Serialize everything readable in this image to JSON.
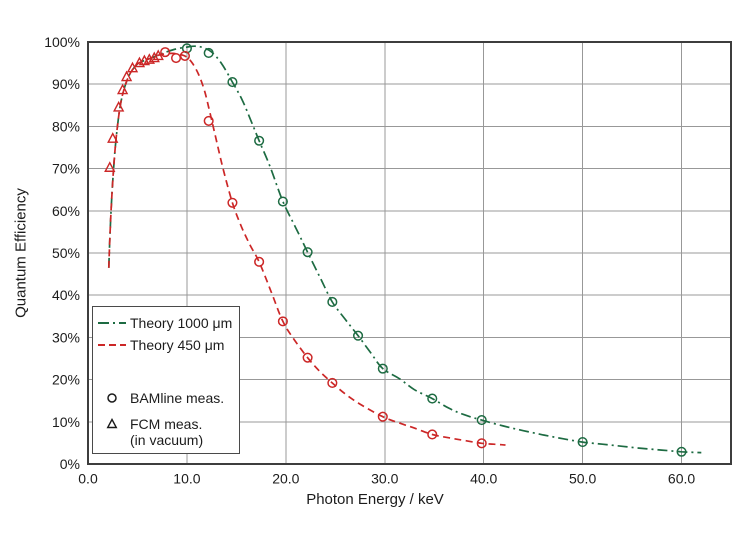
{
  "figure": {
    "background": "#ffffff"
  },
  "colors": {
    "green": "#1d6b42",
    "red": "#cc2727",
    "grid": "#989898",
    "border": "#3d3d3d",
    "black": "#1a1a1a"
  },
  "legend": {
    "items": [
      {
        "type": "line",
        "style": "dashdot",
        "label": "Theory 1000 μm"
      },
      {
        "type": "line",
        "style": "dashed",
        "label": "Theory 450 μm"
      },
      {
        "type": "marker",
        "marker": "circle",
        "label": "BAMline meas."
      },
      {
        "type": "marker",
        "marker": "triangle",
        "label": "FCM meas.",
        "sublabel": "(in vacuum)"
      }
    ]
  },
  "chart_data": {
    "type": "line",
    "title": "",
    "xlabel": "Photon Energy / keV",
    "ylabel": "Quantum Efficiency",
    "xlim": [
      0,
      65
    ],
    "ylim": [
      0,
      100
    ],
    "grid": true,
    "legend_position": "lower-left",
    "x_ticks": [
      {
        "v": 0,
        "label": "0.0"
      },
      {
        "v": 10,
        "label": "10.0"
      },
      {
        "v": 20,
        "label": "20.0"
      },
      {
        "v": 30,
        "label": "30.0"
      },
      {
        "v": 40,
        "label": "40.0"
      },
      {
        "v": 50,
        "label": "50.0"
      },
      {
        "v": 60,
        "label": "60.0"
      }
    ],
    "y_ticks": [
      {
        "v": 0,
        "label": "0%"
      },
      {
        "v": 10,
        "label": "10%"
      },
      {
        "v": 20,
        "label": "20%"
      },
      {
        "v": 30,
        "label": "30%"
      },
      {
        "v": 40,
        "label": "40%"
      },
      {
        "v": 50,
        "label": "50%"
      },
      {
        "v": 60,
        "label": "60%"
      },
      {
        "v": 70,
        "label": "70%"
      },
      {
        "v": 80,
        "label": "80%"
      },
      {
        "v": 90,
        "label": "90%"
      },
      {
        "v": 100,
        "label": "100%"
      }
    ],
    "series": [
      {
        "name": "Theory 1000 μm",
        "kind": "curve",
        "dash": "dashdot",
        "color_key": "green",
        "points": [
          [
            2.1,
            46.5
          ],
          [
            2.25,
            56
          ],
          [
            2.45,
            65
          ],
          [
            2.7,
            73.5
          ],
          [
            3.0,
            80.5
          ],
          [
            3.35,
            86
          ],
          [
            3.8,
            90
          ],
          [
            4.3,
            92.7
          ],
          [
            5.0,
            94.8
          ],
          [
            5.7,
            95.6
          ],
          [
            6.4,
            96.2
          ],
          [
            7.0,
            96.8
          ],
          [
            8.0,
            97.7
          ],
          [
            9.0,
            98.4
          ],
          [
            10.0,
            98.8
          ],
          [
            10.8,
            99.0
          ],
          [
            11.6,
            98.7
          ],
          [
            12.5,
            97.6
          ],
          [
            13.5,
            94.9
          ],
          [
            14.6,
            90.5
          ],
          [
            15.6,
            86.2
          ],
          [
            16.5,
            81.2
          ],
          [
            17.3,
            76.6
          ],
          [
            18.4,
            70.5
          ],
          [
            19.7,
            62.2
          ],
          [
            21.0,
            56.0
          ],
          [
            22.2,
            50.2
          ],
          [
            23.5,
            44.0
          ],
          [
            24.7,
            38.4
          ],
          [
            26.0,
            34.3
          ],
          [
            27.3,
            30.4
          ],
          [
            28.6,
            26.3
          ],
          [
            29.8,
            22.6
          ],
          [
            31.5,
            20.2
          ],
          [
            33.0,
            17.6
          ],
          [
            34.8,
            15.5
          ],
          [
            36.5,
            13.2
          ],
          [
            38.0,
            11.7
          ],
          [
            39.8,
            10.4
          ],
          [
            42.0,
            9.0
          ],
          [
            44.0,
            7.9
          ],
          [
            46.0,
            6.9
          ],
          [
            48.0,
            6.0
          ],
          [
            50.0,
            5.2
          ],
          [
            52.0,
            4.7
          ],
          [
            54.0,
            4.2
          ],
          [
            56.0,
            3.7
          ],
          [
            58.0,
            3.3
          ],
          [
            60.0,
            2.9
          ],
          [
            62.0,
            2.7
          ]
        ]
      },
      {
        "name": "Theory 450 μm",
        "kind": "curve",
        "dash": "dashed",
        "color_key": "red",
        "points": [
          [
            2.1,
            46.5
          ],
          [
            2.25,
            56
          ],
          [
            2.45,
            65
          ],
          [
            2.7,
            73.5
          ],
          [
            3.0,
            80.5
          ],
          [
            3.35,
            86
          ],
          [
            3.8,
            90
          ],
          [
            4.3,
            92.7
          ],
          [
            5.0,
            94.8
          ],
          [
            5.7,
            95.6
          ],
          [
            6.4,
            96.2
          ],
          [
            7.0,
            96.8
          ],
          [
            7.8,
            97.2
          ],
          [
            8.6,
            97.3
          ],
          [
            9.4,
            97.0
          ],
          [
            10.0,
            96.4
          ],
          [
            10.6,
            94.8
          ],
          [
            11.2,
            92.2
          ],
          [
            11.8,
            88.3
          ],
          [
            12.3,
            83.5
          ],
          [
            12.8,
            78.5
          ],
          [
            13.6,
            70.5
          ],
          [
            14.6,
            61.9
          ],
          [
            15.5,
            56.3
          ],
          [
            16.4,
            51.8
          ],
          [
            17.3,
            47.9
          ],
          [
            18.5,
            40.9
          ],
          [
            19.7,
            33.8
          ],
          [
            20.9,
            29.3
          ],
          [
            22.2,
            25.2
          ],
          [
            23.4,
            22.0
          ],
          [
            24.7,
            19.2
          ],
          [
            26.0,
            16.6
          ],
          [
            27.5,
            14.2
          ],
          [
            29.8,
            11.2
          ],
          [
            31.5,
            9.7
          ],
          [
            33.0,
            8.5
          ],
          [
            34.8,
            7.0
          ],
          [
            36.5,
            6.2
          ],
          [
            38.0,
            5.6
          ],
          [
            39.8,
            4.9
          ],
          [
            41.0,
            4.7
          ],
          [
            42.2,
            4.5
          ]
        ]
      },
      {
        "name": "BAMline meas. (1000 μm)",
        "kind": "markers",
        "marker": "circle",
        "color_key": "green",
        "points": [
          [
            10.0,
            98.5
          ],
          [
            12.2,
            97.4
          ],
          [
            14.6,
            90.5
          ],
          [
            17.3,
            76.6
          ],
          [
            19.7,
            62.2
          ],
          [
            22.2,
            50.2
          ],
          [
            24.7,
            38.4
          ],
          [
            27.3,
            30.4
          ],
          [
            29.8,
            22.6
          ],
          [
            34.8,
            15.5
          ],
          [
            39.8,
            10.4
          ],
          [
            50.0,
            5.2
          ],
          [
            60.0,
            2.9
          ]
        ]
      },
      {
        "name": "BAMline meas. (450 μm)",
        "kind": "markers",
        "marker": "circle",
        "color_key": "red",
        "points": [
          [
            7.8,
            97.6
          ],
          [
            8.9,
            96.2
          ],
          [
            9.8,
            96.7
          ],
          [
            12.2,
            81.3
          ],
          [
            14.6,
            61.9
          ],
          [
            17.3,
            47.9
          ],
          [
            19.7,
            33.8
          ],
          [
            22.2,
            25.2
          ],
          [
            24.7,
            19.2
          ],
          [
            29.8,
            11.2
          ],
          [
            34.8,
            7.0
          ],
          [
            39.8,
            4.9
          ]
        ]
      },
      {
        "name": "FCM meas. (in vacuum)",
        "kind": "markers",
        "marker": "triangle",
        "color_key": "red",
        "points": [
          [
            2.2,
            70.2
          ],
          [
            2.5,
            77.1
          ],
          [
            3.1,
            84.5
          ],
          [
            3.5,
            88.6
          ],
          [
            3.9,
            91.7
          ],
          [
            4.5,
            93.8
          ],
          [
            5.2,
            95.0
          ],
          [
            5.7,
            95.5
          ],
          [
            6.2,
            95.8
          ],
          [
            6.7,
            96.2
          ],
          [
            7.1,
            96.7
          ]
        ]
      }
    ]
  }
}
